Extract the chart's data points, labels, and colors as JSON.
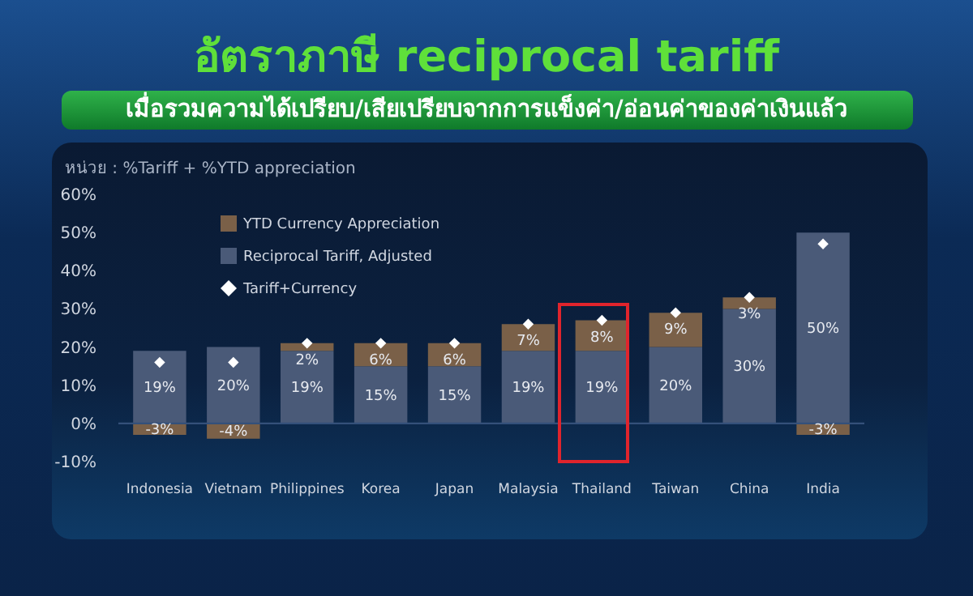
{
  "chart_data": {
    "type": "bar",
    "title": "อัตราภาษี reciprocal tariff",
    "subtitle": "เมื่อรวมความได้เปรียบ/เสียเปรียบจากการแข็งค่า/อ่อนค่าของค่าเงินแล้ว",
    "ylabel": "หน่วย : %Tariff + %YTD appreciation",
    "categories": [
      "Indonesia",
      "Vietnam",
      "Philippines",
      "Korea",
      "Japan",
      "Malaysia",
      "Thailand",
      "Taiwan",
      "China",
      "India"
    ],
    "stacked": true,
    "series": [
      {
        "name": "Reciprocal Tariff, Adjusted",
        "color": "#4a5a78",
        "values": [
          19,
          20,
          19,
          15,
          15,
          19,
          19,
          20,
          30,
          50
        ],
        "value_labels": [
          "19%",
          "20%",
          "19%",
          "15%",
          "15%",
          "19%",
          "19%",
          "20%",
          "30%",
          "50%"
        ]
      },
      {
        "name": "YTD Currency Appreciation",
        "color": "#7a6048",
        "values": [
          -3,
          -4,
          2,
          6,
          6,
          7,
          8,
          9,
          3,
          -3
        ],
        "value_labels": [
          "-3%",
          "-4%",
          "2%",
          "6%",
          "6%",
          "7%",
          "8%",
          "9%",
          "3%",
          "-3%"
        ]
      },
      {
        "name": "Tariff+Currency",
        "type": "scatter",
        "marker": "diamond",
        "color": "#ffffff",
        "values": [
          16,
          16,
          21,
          21,
          21,
          26,
          27,
          29,
          33,
          47
        ]
      }
    ],
    "ylim": [
      -10,
      60
    ],
    "yticks": [
      {
        "value": -10,
        "label": "-10%"
      },
      {
        "value": 0,
        "label": "0%"
      },
      {
        "value": 10,
        "label": "10%"
      },
      {
        "value": 20,
        "label": "20%"
      },
      {
        "value": 30,
        "label": "30%"
      },
      {
        "value": 40,
        "label": "40%"
      },
      {
        "value": 50,
        "label": "50%"
      },
      {
        "value": 60,
        "label": "60%"
      }
    ],
    "ref_lines": [
      {
        "axis": "y",
        "value": 0,
        "color": "#34507a"
      }
    ],
    "grid": false,
    "legend": "top left"
  }
}
